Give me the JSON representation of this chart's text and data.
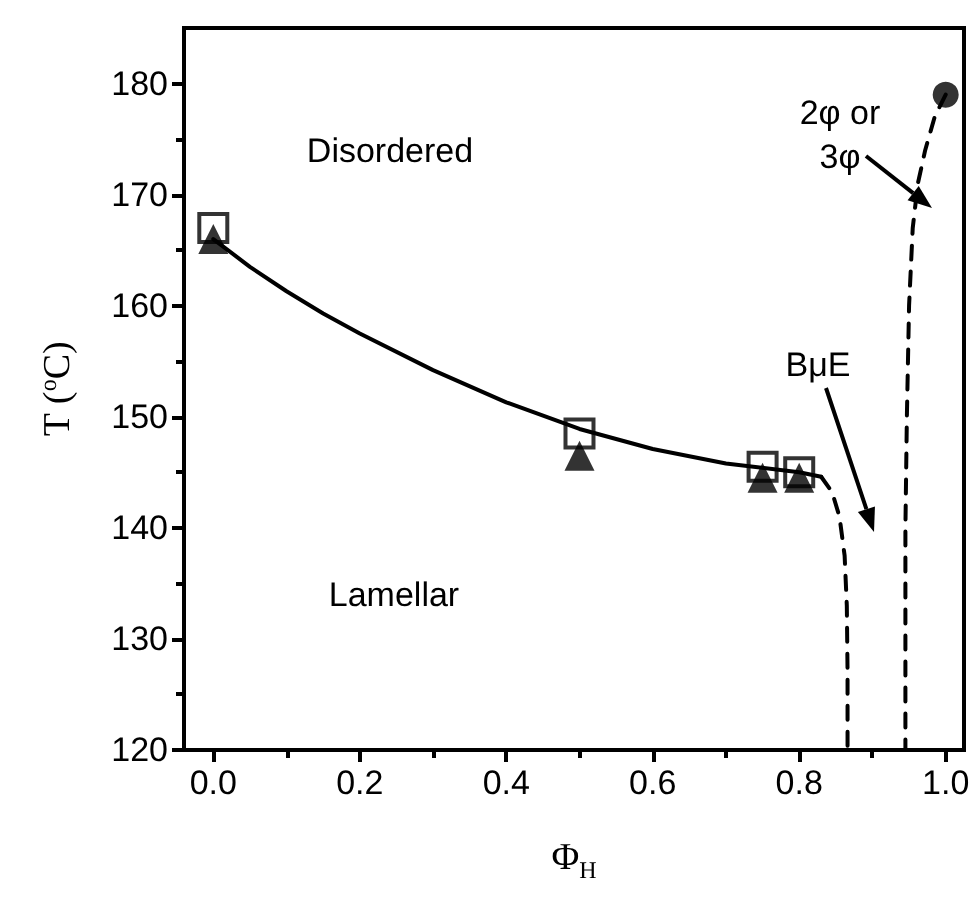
{
  "chart_data": {
    "type": "scatter",
    "xlabel": "Φ$_{H}$",
    "ylabel": "T ($^{o}$C)",
    "xlim": [
      -0.04,
      1.025
    ],
    "ylim": [
      120,
      185
    ],
    "xticks": [
      {
        "value": 0,
        "label": "0.0"
      },
      {
        "value": 0.2,
        "label": "0.2"
      },
      {
        "value": 0.4,
        "label": "0.4"
      },
      {
        "value": 0.6,
        "label": "0.6"
      },
      {
        "value": 0.8,
        "label": "0.8"
      },
      {
        "value": 1,
        "label": "1.0"
      }
    ],
    "yticks": [
      120,
      130,
      140,
      150,
      160,
      170,
      180
    ],
    "series": [
      {
        "type": "line",
        "marker": "none",
        "line_style": "solid",
        "color": "#000000",
        "x": [
          0,
          0.05,
          0.1,
          0.15,
          0.2,
          0.3,
          0.4,
          0.5,
          0.6,
          0.7,
          0.8,
          0.83
        ],
        "values": [
          166,
          163.5,
          161.3,
          159.3,
          157.5,
          154.2,
          151.3,
          148.9,
          147.1,
          145.8,
          145,
          144.6
        ]
      },
      {
        "type": "line",
        "marker": "none",
        "line_style": "dashed",
        "color": "#000000",
        "x": [
          0.83,
          0.845,
          0.855,
          0.862,
          0.865,
          0.866,
          0.866
        ],
        "values": [
          144.6,
          143.2,
          141,
          137.5,
          133,
          127,
          120
        ]
      },
      {
        "type": "line",
        "marker": "none",
        "line_style": "dashed",
        "color": "#000000",
        "x": [
          1,
          0.985,
          0.972,
          0.962,
          0.955,
          0.95,
          0.947,
          0.945,
          0.945
        ],
        "values": [
          179,
          177,
          174,
          171,
          167,
          160,
          150,
          140,
          120
        ]
      },
      {
        "marker": "square",
        "color": "#000000",
        "x": [
          0,
          0.5,
          0.75,
          0.8
        ],
        "values": [
          167,
          148.5,
          145.5,
          145
        ]
      },
      {
        "marker": "triangle",
        "color": "#000000",
        "x": [
          0,
          0.5,
          0.75,
          0.8
        ],
        "values": [
          166,
          146.5,
          144.5,
          144.5
        ]
      },
      {
        "marker": "circle",
        "color": "#000000",
        "x": [
          1
        ],
        "values": [
          179
        ]
      }
    ],
    "annotations": [
      "Disordered",
      "Lamellar",
      "BμE",
      "2φ or\n3φ"
    ]
  }
}
